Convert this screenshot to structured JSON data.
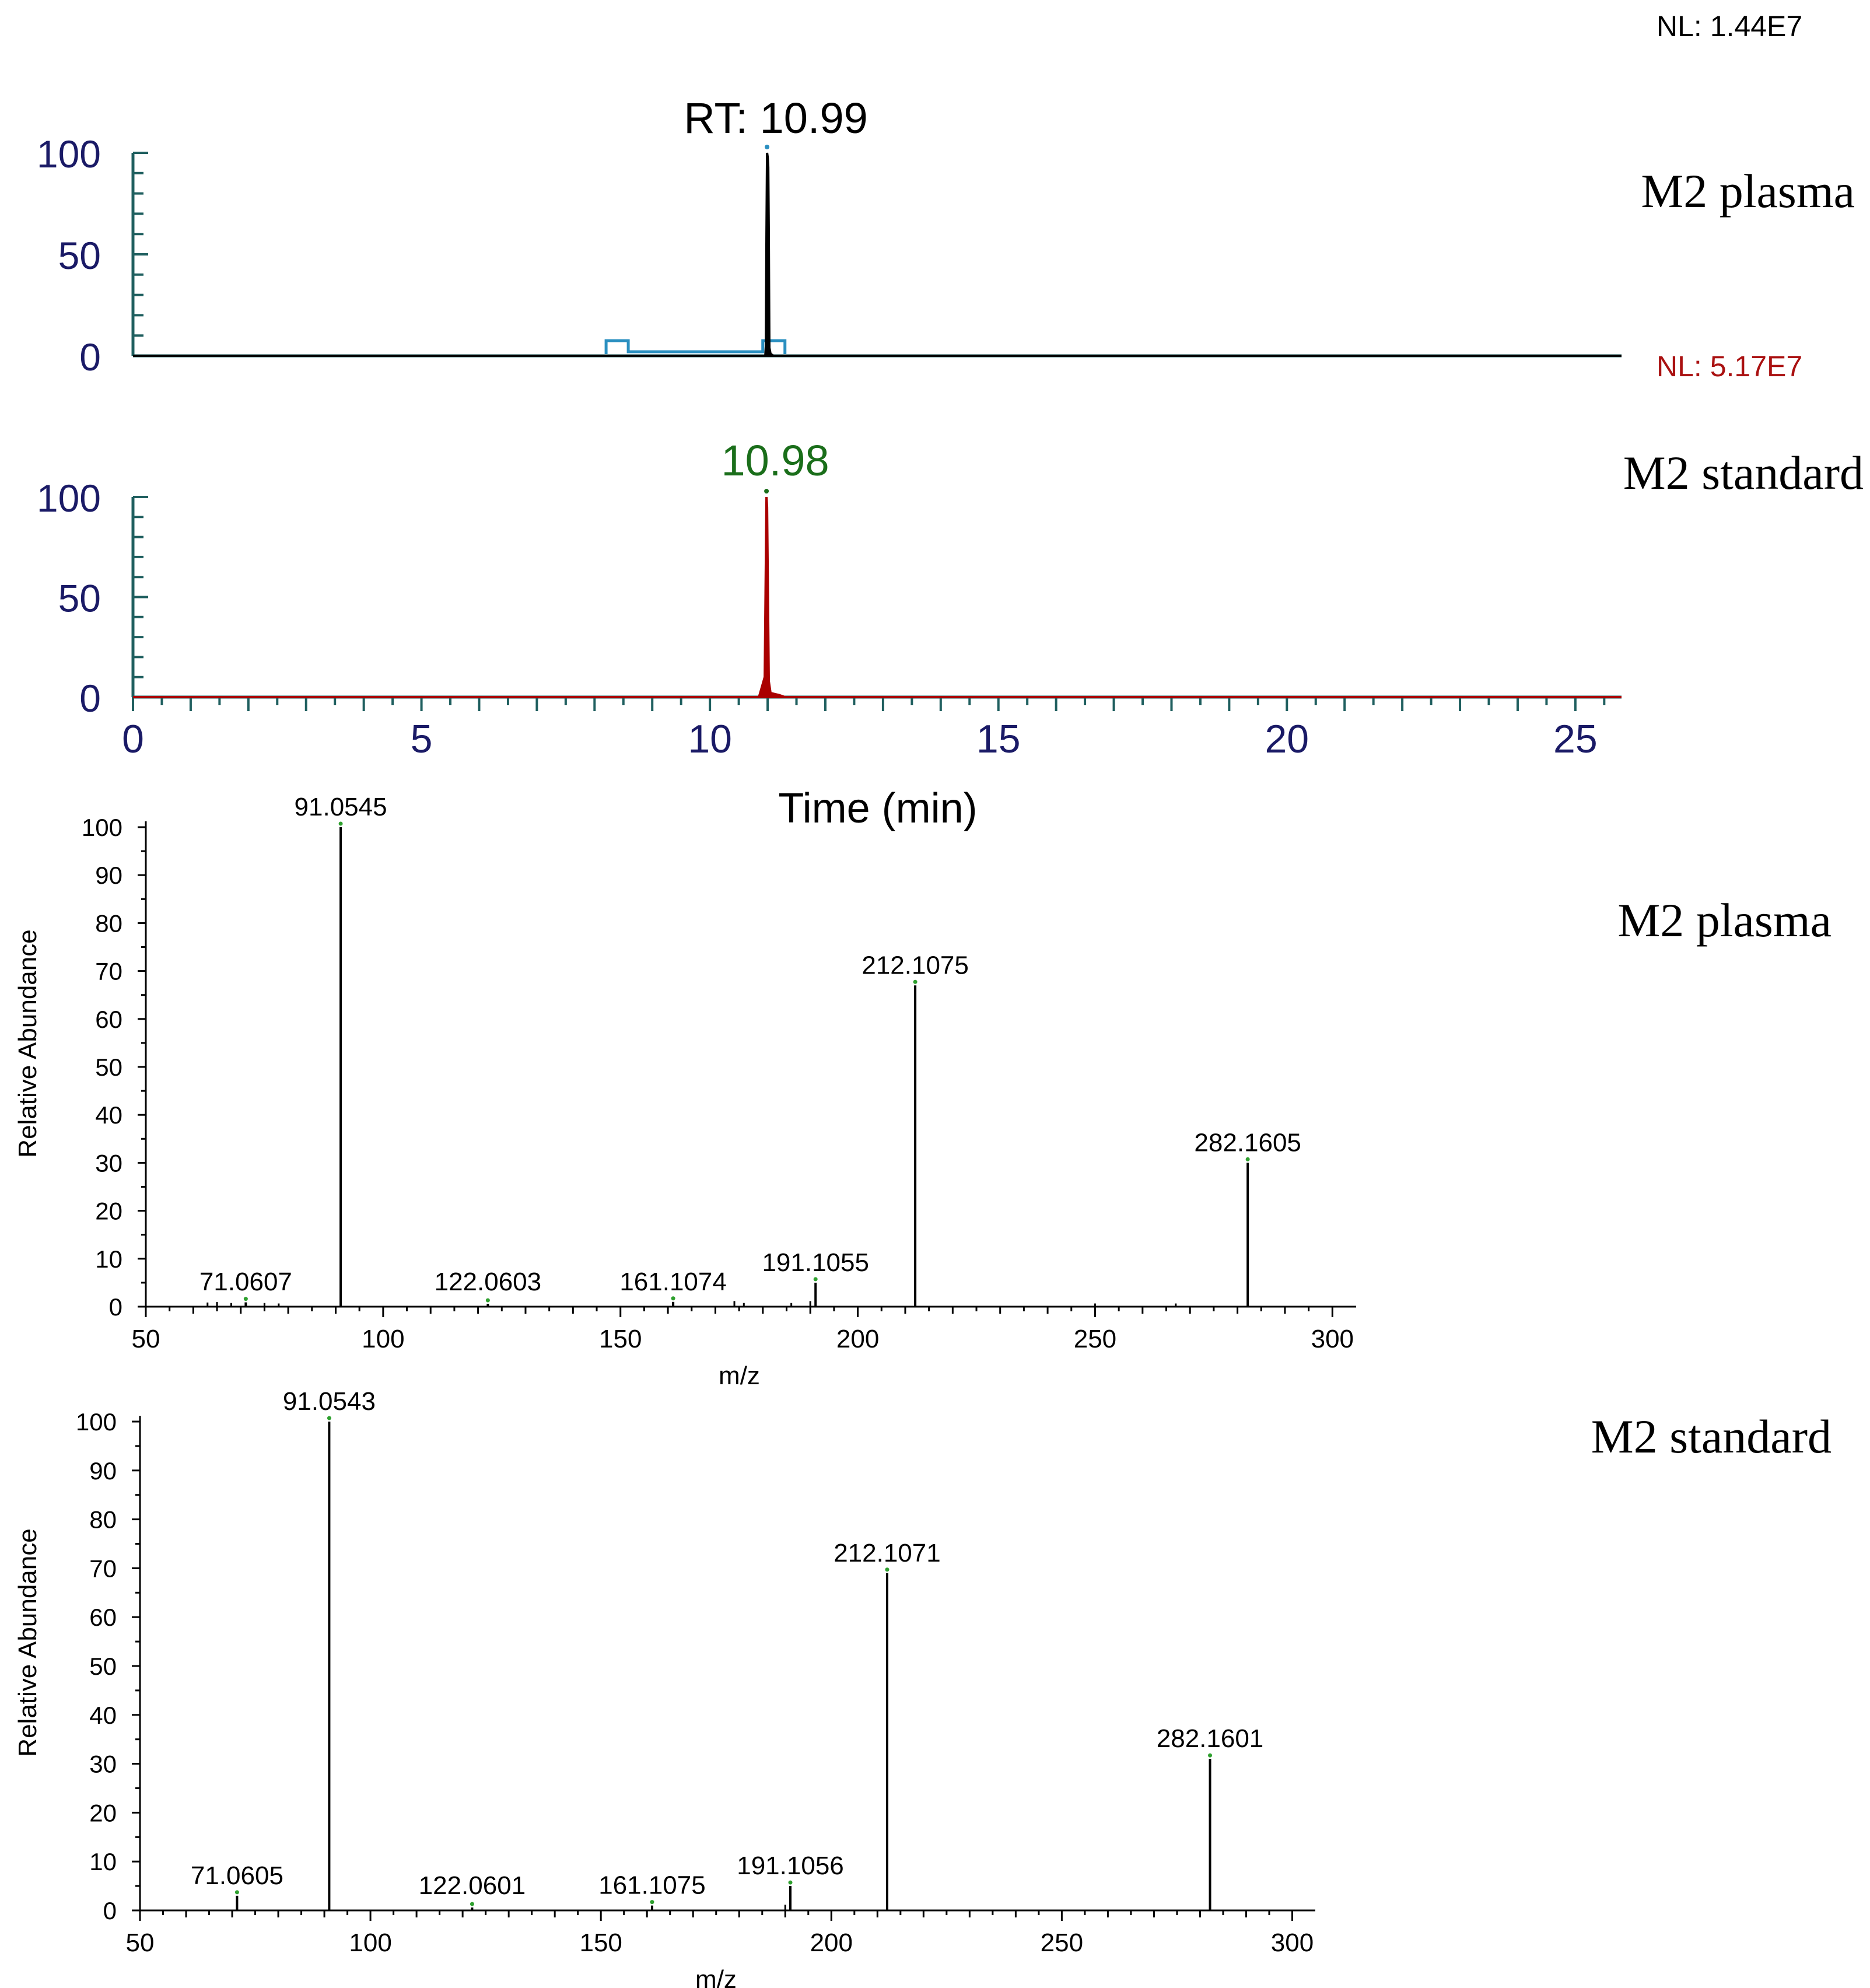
{
  "chart_data": [
    {
      "type": "line",
      "name": "chromatogram-plasma",
      "label": "M2  plasma",
      "nl_label": "NL: 1.44E7",
      "peak_label": "RT: 10.99",
      "peak_rt": 10.99,
      "xlim": [
        0,
        25.8
      ],
      "ylim": [
        0,
        100
      ],
      "yticks": [
        "100",
        "50",
        "0"
      ],
      "x": [
        0,
        8.2,
        10.96,
        10.97,
        10.98,
        10.99,
        11.0,
        11.01,
        11.02,
        11.03,
        11.05,
        11.1,
        25.8
      ],
      "y": [
        0,
        0,
        0,
        5,
        60,
        100,
        98,
        93,
        60,
        4,
        1,
        0,
        0
      ],
      "integration_range": [
        8.2,
        11.3
      ],
      "colors": {
        "trace": "#000000",
        "axis": "#1f5f5f",
        "tick_label": "#1a1a66",
        "baseline_box": "#2a8fc0",
        "nl": "#000000"
      }
    },
    {
      "type": "line",
      "name": "chromatogram-standard",
      "label": "M2 standard",
      "nl_label": "NL: 5.17E7",
      "peak_label": "10.98",
      "peak_rt": 10.98,
      "xlim": [
        0,
        25.8
      ],
      "ylim": [
        0,
        100
      ],
      "yticks": [
        "100",
        "50",
        "0"
      ],
      "xticks": [
        "0",
        "5",
        "10",
        "15",
        "20",
        "25"
      ],
      "xlabel": "Time (min)",
      "x": [
        0,
        10.85,
        10.9,
        10.95,
        10.97,
        10.98,
        10.99,
        11.0,
        11.02,
        11.05,
        11.2,
        11.3,
        25.8
      ],
      "y": [
        0,
        0,
        5,
        10,
        70,
        100,
        95,
        65,
        8,
        2,
        1,
        0,
        0
      ],
      "colors": {
        "trace": "#aa0000",
        "axis": "#1f5f5f",
        "tick_label": "#1a1a66",
        "peak_label": "#1a6e1a",
        "nl": "#aa1111"
      }
    },
    {
      "type": "bar",
      "name": "ms-spectrum-plasma",
      "label": "M2 plasma",
      "xlabel": "m/z",
      "ylabel": "Relative Abundance",
      "xlim": [
        50,
        305
      ],
      "ylim": [
        0,
        100
      ],
      "xticks": [
        "50",
        "100",
        "150",
        "200",
        "250",
        "300"
      ],
      "yticks": [
        "0",
        "10",
        "20",
        "30",
        "40",
        "50",
        "60",
        "70",
        "80",
        "90",
        "100"
      ],
      "peaks": [
        {
          "mz": 91.0545,
          "intensity": 100,
          "label": "91.0545"
        },
        {
          "mz": 212.1075,
          "intensity": 67,
          "label": "212.1075"
        },
        {
          "mz": 282.1605,
          "intensity": 30,
          "label": "282.1605"
        },
        {
          "mz": 191.1055,
          "intensity": 5,
          "label": "191.1055"
        },
        {
          "mz": 161.1074,
          "intensity": 1,
          "label": "161.1074"
        },
        {
          "mz": 122.0603,
          "intensity": 0.6,
          "label": "122.0603"
        },
        {
          "mz": 71.0607,
          "intensity": 0.9,
          "label": "71.0607"
        }
      ],
      "minor_peaks": [
        {
          "mz": 63,
          "intensity": 0.5
        },
        {
          "mz": 65,
          "intensity": 0.6
        },
        {
          "mz": 68,
          "intensity": 0.4
        },
        {
          "mz": 75,
          "intensity": 0.4
        },
        {
          "mz": 78,
          "intensity": 0.3
        },
        {
          "mz": 174,
          "intensity": 0.8
        },
        {
          "mz": 176,
          "intensity": 0.4
        },
        {
          "mz": 186,
          "intensity": 0.4
        },
        {
          "mz": 190,
          "intensity": 0.8
        },
        {
          "mz": 250,
          "intensity": 0.3
        },
        {
          "mz": 267,
          "intensity": 0.3
        }
      ],
      "colors": {
        "bar": "#000000",
        "axis": "#000000",
        "peak_marker": "#2ea02e"
      }
    },
    {
      "type": "bar",
      "name": "ms-spectrum-standard",
      "label": "M2 standard",
      "xlabel": "m/z",
      "ylabel": "Relative Abundance",
      "xlim": [
        50,
        305
      ],
      "ylim": [
        0,
        100
      ],
      "xticks": [
        "50",
        "100",
        "150",
        "200",
        "250",
        "300"
      ],
      "yticks": [
        "0",
        "10",
        "20",
        "30",
        "40",
        "50",
        "60",
        "70",
        "80",
        "90",
        "100"
      ],
      "peaks": [
        {
          "mz": 91.0543,
          "intensity": 100,
          "label": "91.0543"
        },
        {
          "mz": 212.1071,
          "intensity": 69,
          "label": "212.1071"
        },
        {
          "mz": 282.1601,
          "intensity": 31,
          "label": "282.1601"
        },
        {
          "mz": 191.1056,
          "intensity": 5,
          "label": "191.1056"
        },
        {
          "mz": 161.1075,
          "intensity": 1,
          "label": "161.1075"
        },
        {
          "mz": 122.0601,
          "intensity": 0.6,
          "label": "122.0601"
        },
        {
          "mz": 71.0605,
          "intensity": 3,
          "label": "71.0605"
        }
      ],
      "minor_peaks": [
        {
          "mz": 190,
          "intensity": 0.8
        }
      ],
      "colors": {
        "bar": "#000000",
        "axis": "#000000",
        "peak_marker": "#2ea02e"
      }
    }
  ]
}
